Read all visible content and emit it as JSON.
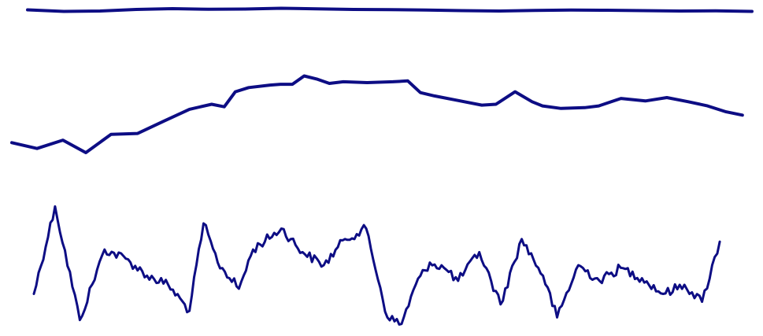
{
  "colors": {
    "background": "#ffffff",
    "line": "#0d0d84"
  },
  "chart_data": {
    "type": "line",
    "axes_visible": false,
    "grid": false,
    "legend": "none",
    "title": "",
    "series": [
      {
        "x": [
          0,
          0.05,
          0.1,
          0.15,
          0.2,
          0.25,
          0.3,
          0.35,
          0.4,
          0.45,
          0.5,
          0.55,
          0.6,
          0.65,
          0.7,
          0.75,
          0.8,
          0.85,
          0.9,
          0.95,
          1.0
        ],
        "values": [
          0.65,
          0.45,
          0.5,
          0.7,
          0.8,
          0.72,
          0.75,
          0.85,
          0.78,
          0.7,
          0.68,
          0.62,
          0.55,
          0.5,
          0.58,
          0.62,
          0.6,
          0.55,
          0.5,
          0.52,
          0.45
        ]
      },
      {
        "x": [
          0,
          0.034,
          0.069,
          0.1,
          0.134,
          0.17,
          0.206,
          0.24,
          0.27,
          0.287,
          0.302,
          0.32,
          0.349,
          0.363,
          0.379,
          0.395,
          0.413,
          0.429,
          0.448,
          0.48,
          0.515,
          0.535,
          0.552,
          0.571,
          0.6,
          0.635,
          0.654,
          0.68,
          0.703,
          0.717,
          0.742,
          0.774,
          0.793,
          0.823,
          0.856,
          0.885,
          0.914,
          0.94,
          0.965,
          0.987
        ],
        "values": [
          0.12,
          0.05,
          0.15,
          0.0,
          0.22,
          0.23,
          0.38,
          0.52,
          0.58,
          0.55,
          0.73,
          0.78,
          0.81,
          0.82,
          0.82,
          0.92,
          0.88,
          0.83,
          0.85,
          0.84,
          0.85,
          0.86,
          0.72,
          0.68,
          0.63,
          0.57,
          0.58,
          0.73,
          0.61,
          0.56,
          0.53,
          0.54,
          0.56,
          0.65,
          0.62,
          0.66,
          0.61,
          0.56,
          0.49,
          0.45
        ]
      },
      {
        "x": [
          0,
          0.03,
          0.065,
          0.1,
          0.13,
          0.16,
          0.19,
          0.22,
          0.24,
          0.26,
          0.29,
          0.31,
          0.35,
          0.38,
          0.41,
          0.44,
          0.47,
          0.5,
          0.52,
          0.54,
          0.56,
          0.58,
          0.6,
          0.63,
          0.66,
          0.69,
          0.72,
          0.74,
          0.77,
          0.8,
          0.83,
          0.86,
          0.89,
          0.92,
          0.945,
          0.97
        ],
        "values": [
          0.28,
          0.95,
          0.08,
          0.62,
          0.55,
          0.42,
          0.35,
          0.15,
          0.82,
          0.52,
          0.32,
          0.62,
          0.78,
          0.6,
          0.5,
          0.7,
          0.78,
          0.1,
          0.05,
          0.35,
          0.52,
          0.48,
          0.38,
          0.6,
          0.2,
          0.7,
          0.42,
          0.1,
          0.5,
          0.38,
          0.48,
          0.4,
          0.28,
          0.35,
          0.22,
          0.68
        ]
      }
    ]
  }
}
